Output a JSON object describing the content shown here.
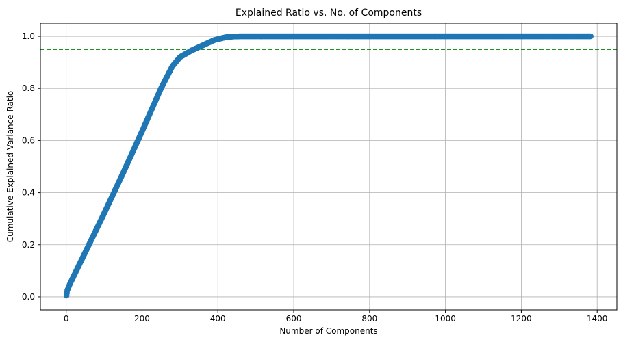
{
  "chart_data": {
    "type": "scatter",
    "title": "Explained Ratio vs. No. of Components",
    "xlabel": "Number of Components",
    "ylabel": "Cumulative Explained Variance Ratio",
    "xlim": [
      -68,
      1452
    ],
    "ylim": [
      -0.05,
      1.05
    ],
    "xticks": [
      0,
      200,
      400,
      600,
      800,
      1000,
      1200,
      1400
    ],
    "yticks": [
      0.0,
      0.2,
      0.4,
      0.6,
      0.8,
      1.0
    ],
    "xtick_labels": [
      "0",
      "200",
      "400",
      "600",
      "800",
      "1000",
      "1200",
      "1400"
    ],
    "ytick_labels": [
      "0.0",
      "0.2",
      "0.4",
      "0.6",
      "0.8",
      "1.0"
    ],
    "grid": true,
    "series": [
      {
        "color": "#1f77b4",
        "marker": "circle",
        "x_start": 1,
        "x_end": 1383,
        "curve_x": [
          1,
          3,
          10,
          20,
          40,
          60,
          100,
          150,
          200,
          250,
          280,
          300,
          330,
          360,
          390,
          420,
          440,
          460,
          1383
        ],
        "curve_y": [
          0.005,
          0.025,
          0.05,
          0.08,
          0.14,
          0.2,
          0.32,
          0.475,
          0.635,
          0.8,
          0.885,
          0.92,
          0.945,
          0.965,
          0.985,
          0.996,
          0.999,
          1.0,
          1.0
        ]
      }
    ],
    "reference_line": {
      "orientation": "horizontal",
      "y": 0.95,
      "style": "dashed",
      "color": "#008000"
    }
  }
}
